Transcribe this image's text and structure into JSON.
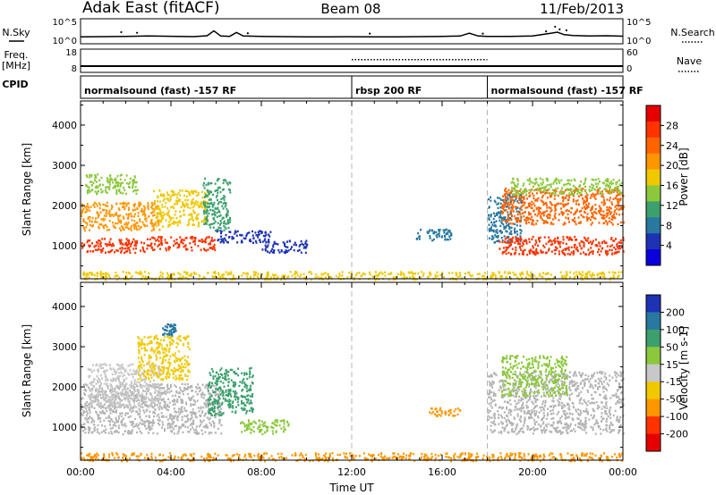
{
  "header": {
    "title": "Adak East (fitACF)",
    "beam": "Beam 08",
    "date": "11/Feb/2013"
  },
  "colors": {
    "axis": "#000000",
    "gridline": "#b4b4b4",
    "ground_scatter": "#b4b4b4"
  },
  "chart_data": [
    {
      "type": "line",
      "panel": "sky-noise",
      "left_label": "N.Sky",
      "right_label": "N.Search",
      "y_scale": "log",
      "y_ticks_left": [
        "10^5",
        "10^0"
      ],
      "y_ticks_right": [
        "10^5",
        "10^0"
      ],
      "ylim": [
        1,
        100000
      ],
      "xlim": [
        0,
        24
      ],
      "series": [
        {
          "name": "N.Sky",
          "style": "solid",
          "x": [
            0,
            1,
            2,
            3,
            4,
            5,
            5.6,
            5.9,
            6.2,
            6.6,
            6.9,
            7.2,
            8,
            9,
            10,
            11,
            12,
            13,
            14,
            15,
            16,
            16.8,
            17.2,
            17.6,
            18,
            19,
            20,
            20.8,
            21.1,
            21.4,
            21.8,
            22.5,
            23.3,
            24
          ],
          "y": [
            20,
            22,
            25,
            30,
            26,
            22,
            35,
            400,
            30,
            25,
            180,
            30,
            24,
            22,
            20,
            20,
            21,
            20,
            20,
            22,
            24,
            30,
            120,
            30,
            25,
            24,
            30,
            120,
            200,
            60,
            40,
            30,
            35,
            28
          ]
        },
        {
          "name": "N.Search",
          "style": "dotted",
          "x": [
            1.8,
            2.5,
            7.4,
            12.8,
            17.8,
            20.6,
            21.0,
            21.2,
            21.5
          ],
          "y": [
            200,
            150,
            120,
            100,
            100,
            300,
            3000,
            800,
            500
          ]
        }
      ]
    },
    {
      "type": "line",
      "panel": "frequency",
      "left_label": "Freq.",
      "left_units": "[MHz]",
      "right_label": "Nave",
      "y_ticks_left": [
        "18",
        "8"
      ],
      "y_ticks_right": [
        "60",
        "0"
      ],
      "ylim": [
        8,
        18
      ],
      "xlim": [
        0,
        24
      ],
      "series": [
        {
          "name": "Freq.",
          "style": "solid",
          "x": [
            0,
            24
          ],
          "y": [
            10.5,
            10.5
          ]
        },
        {
          "name": "Nave",
          "style": "dotted",
          "x": [
            12,
            18
          ],
          "y": [
            13.5,
            13.5
          ]
        }
      ]
    },
    {
      "type": "table",
      "panel": "cpid",
      "left_label": "CPID",
      "segments": [
        {
          "label": "normalsound (fast) -157 RF",
          "start": 0,
          "end": 12
        },
        {
          "label": "rbsp 200 RF",
          "start": 12,
          "end": 18
        },
        {
          "label": "normalsound (fast) -157 RF",
          "start": 18,
          "end": 24
        }
      ]
    },
    {
      "type": "heatmap",
      "panel": "power",
      "ylabel": "Slant Range [km]",
      "y_ticks": [
        "1000",
        "2000",
        "3000",
        "4000"
      ],
      "ylim": [
        180,
        4600
      ],
      "xlim": [
        0,
        24
      ],
      "vertical_gridlines_at": [
        12,
        18
      ],
      "colorbar": {
        "label": "Power [dB]",
        "ticks": [
          "4",
          "8",
          "12",
          "16",
          "20",
          "24",
          "28"
        ],
        "range": [
          0,
          32
        ],
        "colors": [
          "#0a00dc",
          "#1e32b4",
          "#2878a0",
          "#3ca06e",
          "#8cc83c",
          "#f0c800",
          "#ff9600",
          "#ff6400",
          "#ff3200",
          "#e60000"
        ]
      },
      "regions": [
        {
          "x": [
            0,
            3
          ],
          "y": [
            850,
            1200
          ],
          "value": 28
        },
        {
          "x": [
            0,
            3.5
          ],
          "y": [
            1400,
            2100
          ],
          "value": 21
        },
        {
          "x": [
            0.2,
            2.5
          ],
          "y": [
            2300,
            2800
          ],
          "value": 13
        },
        {
          "x": [
            3,
            6
          ],
          "y": [
            900,
            1250
          ],
          "value": 26
        },
        {
          "x": [
            3.2,
            5.6
          ],
          "y": [
            1500,
            2400
          ],
          "value": 19
        },
        {
          "x": [
            5.4,
            6.6
          ],
          "y": [
            1400,
            2700
          ],
          "value": 10
        },
        {
          "x": [
            6,
            8.4
          ],
          "y": [
            1100,
            1400
          ],
          "value": 6
        },
        {
          "x": [
            8,
            10
          ],
          "y": [
            850,
            1150
          ],
          "value": 5
        },
        {
          "x": [
            14.8,
            16.4
          ],
          "y": [
            1150,
            1450
          ],
          "value": 7
        },
        {
          "x": [
            18,
            19.5
          ],
          "y": [
            1100,
            2300
          ],
          "value": 8
        },
        {
          "x": [
            18.5,
            24
          ],
          "y": [
            800,
            1250
          ],
          "value": 28
        },
        {
          "x": [
            18.6,
            24
          ],
          "y": [
            1550,
            2450
          ],
          "value": 24
        },
        {
          "x": [
            19,
            24
          ],
          "y": [
            2300,
            2700
          ],
          "value": 15
        },
        {
          "x": [
            0,
            24
          ],
          "y": [
            180,
            380
          ],
          "value": 18
        }
      ]
    },
    {
      "type": "heatmap",
      "panel": "velocity",
      "ylabel": "Slant Range [km]",
      "y_ticks": [
        "1000",
        "2000",
        "3000",
        "4000"
      ],
      "ylim": [
        180,
        4600
      ],
      "xlim": [
        0,
        24
      ],
      "vertical_gridlines_at": [
        12,
        18
      ],
      "colorbar": {
        "label": "Velocity [m s-1]",
        "ticks": [
          "200",
          "100",
          "50",
          "15",
          "-15",
          "-50",
          "-100",
          "-200"
        ],
        "colors": [
          "#1e32b4",
          "#2878a0",
          "#3ca06e",
          "#8cc83c",
          "#c8c8c8",
          "#f0c800",
          "#ff9600",
          "#ff3200",
          "#e60000"
        ]
      },
      "regions": [
        {
          "x": [
            0,
            6.2
          ],
          "y": [
            850,
            2100
          ],
          "value": "ground"
        },
        {
          "x": [
            0.3,
            3.5
          ],
          "y": [
            1500,
            2600
          ],
          "value": 10
        },
        {
          "x": [
            2.5,
            4.8
          ],
          "y": [
            2200,
            3300
          ],
          "value": -40
        },
        {
          "x": [
            3.6,
            4.2
          ],
          "y": [
            3300,
            3600
          ],
          "value": 150
        },
        {
          "x": [
            5.6,
            7.6
          ],
          "y": [
            1300,
            2500
          ],
          "value": 60
        },
        {
          "x": [
            7,
            9.2
          ],
          "y": [
            850,
            1200
          ],
          "value": 30
        },
        {
          "x": [
            15.4,
            16.8
          ],
          "y": [
            1300,
            1500
          ],
          "value": -60
        },
        {
          "x": [
            18,
            24
          ],
          "y": [
            850,
            2400
          ],
          "value": "ground"
        },
        {
          "x": [
            18.6,
            21.5
          ],
          "y": [
            1800,
            2800
          ],
          "value": 25
        },
        {
          "x": [
            0,
            24
          ],
          "y": [
            180,
            380
          ],
          "value": -60
        }
      ]
    }
  ],
  "x_axis": {
    "tick_labels": [
      "00:00",
      "04:00",
      "08:00",
      "12:00",
      "16:00",
      "20:00",
      "00:00"
    ],
    "xlabel": "Time UT"
  }
}
